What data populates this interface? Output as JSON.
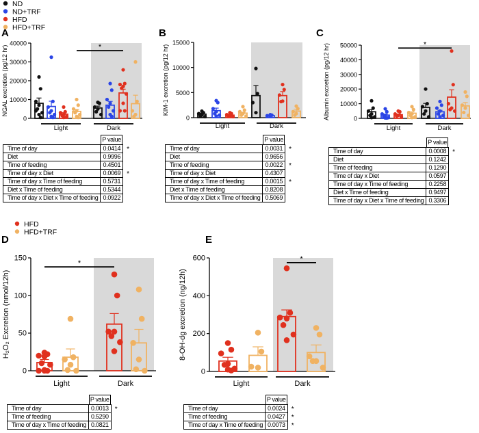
{
  "legend_top": [
    {
      "label": "ND",
      "color": "#111111"
    },
    {
      "label": "ND+TRF",
      "color": "#2b45e6"
    },
    {
      "label": "HFD",
      "color": "#e0301e"
    },
    {
      "label": "HFD+TRF",
      "color": "#f0b262"
    }
  ],
  "legend_bottom": [
    {
      "label": "HFD",
      "color": "#e0301e"
    },
    {
      "label": "HFD+TRF",
      "color": "#f0b262"
    }
  ],
  "shade_color": "#d9d9d9",
  "chart_data": [
    {
      "panel": "A",
      "type": "bar",
      "ylabel": "NGAL excretion (pg/12 hr)",
      "xlabel": "",
      "ylim": [
        0,
        40000
      ],
      "yticks": [
        "0",
        "10000",
        "20000",
        "30000",
        "40000"
      ],
      "groups": [
        "Light",
        "Dark"
      ],
      "shaded_group": "Dark",
      "series": [
        {
          "name": "ND",
          "color": "#111111",
          "values": [
            8000,
            5500
          ],
          "sem": [
            2800,
            1000
          ],
          "points": [
            [
              22000,
              15700,
              9000,
              7000,
              5000,
              3000,
              2000,
              500,
              4000
            ],
            [
              8500,
              8000,
              6000,
              5000,
              3500,
              2000
            ]
          ]
        },
        {
          "name": "ND+TRF",
          "color": "#2b45e6",
          "values": [
            6300,
            7000
          ],
          "sem": [
            2800,
            2000
          ],
          "points": [
            [
              32500,
              9000,
              6000,
              4000,
              3000,
              2000,
              1000,
              500
            ],
            [
              18500,
              15000,
              10000,
              8000,
              6000,
              4000,
              2000,
              1000
            ]
          ]
        },
        {
          "name": "HFD",
          "color": "#e0301e",
          "values": [
            2200,
            13500
          ],
          "sem": [
            800,
            2000
          ],
          "points": [
            [
              6000,
              3500,
              3000,
              2000,
              1500,
              1000,
              500
            ],
            [
              25800,
              18500,
              18000,
              17000,
              16000,
              13000,
              8000,
              4000,
              4000
            ]
          ]
        },
        {
          "name": "HFD+TRF",
          "color": "#f0b262",
          "values": [
            3700,
            7800
          ],
          "sem": [
            1000,
            4500
          ],
          "points": [
            [
              10000,
              7000,
              5000,
              4000,
              3000,
              2000,
              1000,
              500
            ],
            [
              30000,
              9000,
              4000,
              2000,
              1000
            ]
          ]
        }
      ],
      "significance": [
        {
          "from": [
            "Light",
            "HFD+TRF"
          ],
          "to": [
            "Dark",
            "HFD"
          ],
          "y": 36000,
          "label": "*"
        }
      ]
    },
    {
      "panel": "B",
      "type": "bar",
      "ylabel": "KIM-1 excretion (pg/12 hr)",
      "xlabel": "",
      "ylim": [
        0,
        15000
      ],
      "yticks": [
        "0",
        "5000",
        "10000",
        "15000"
      ],
      "groups": [
        "Light",
        "Dark"
      ],
      "shaded_group": "Dark",
      "series": [
        {
          "name": "ND",
          "color": "#111111",
          "values": [
            700,
            4400
          ],
          "sem": [
            200,
            2000
          ],
          "points": [
            [
              1300,
              1000,
              800,
              500,
              300,
              200
            ],
            [
              9800,
              4800,
              3000,
              1000
            ]
          ]
        },
        {
          "name": "ND+TRF",
          "color": "#2b45e6",
          "values": [
            1400,
            400
          ],
          "sem": [
            500,
            80
          ],
          "points": [
            [
              3400,
              3000,
              1800,
              1200,
              800,
              500,
              300
            ],
            [
              600,
              500,
              400,
              300
            ]
          ]
        },
        {
          "name": "HFD",
          "color": "#e0301e",
          "values": [
            500,
            4400
          ],
          "sem": [
            150,
            800
          ],
          "points": [
            [
              1000,
              800,
              600,
              400,
              300,
              200
            ],
            [
              6600,
              5600,
              4500,
              3300,
              3200
            ]
          ]
        },
        {
          "name": "HFD+TRF",
          "color": "#f0b262",
          "values": [
            900,
            1300
          ],
          "sem": [
            200,
            400
          ],
          "points": [
            [
              2200,
              1500,
              1200,
              800,
              500,
              300
            ],
            [
              2300,
              1800,
              1200,
              800,
              500
            ]
          ]
        }
      ],
      "significance": []
    },
    {
      "panel": "C",
      "type": "bar",
      "ylabel": "Albumin excretion (pg/12 hr)",
      "xlabel": "",
      "ylim": [
        0,
        50000
      ],
      "yticks": [
        "0",
        "10000",
        "20000",
        "30000",
        "40000",
        "50000"
      ],
      "groups": [
        "Light",
        "Dark"
      ],
      "shaded_group": "Dark",
      "series": [
        {
          "name": "ND",
          "color": "#111111",
          "values": [
            4500,
            7500
          ],
          "sem": [
            1500,
            2700
          ],
          "points": [
            [
              12000,
              7000,
              5000,
              3000,
              2000,
              1000,
              500
            ],
            [
              20000,
              10000,
              8000,
              5000,
              3000,
              1000
            ]
          ]
        },
        {
          "name": "ND+TRF",
          "color": "#2b45e6",
          "values": [
            2200,
            4500
          ],
          "sem": [
            700,
            1000
          ],
          "points": [
            [
              6500,
              4500,
              3000,
              2000,
              1000,
              500,
              300,
              200
            ],
            [
              11500,
              9000,
              7000,
              5000,
              3000,
              2000,
              1000
            ]
          ]
        },
        {
          "name": "HFD",
          "color": "#e0301e",
          "values": [
            2500,
            14500
          ],
          "sem": [
            500,
            5000
          ],
          "points": [
            [
              5000,
              4500,
              3000,
              2000,
              1500,
              1000
            ],
            [
              46000,
              23000,
              10000,
              7000,
              6000,
              5000
            ]
          ]
        },
        {
          "name": "HFD+TRF",
          "color": "#f0b262",
          "values": [
            3500,
            8500
          ],
          "sem": [
            900,
            2300
          ],
          "points": [
            [
              8000,
              6000,
              4000,
              3000,
              2000,
              1000,
              500
            ],
            [
              18000,
              15000,
              9000,
              7000,
              4000,
              2000
            ]
          ]
        }
      ],
      "significance": [
        {
          "from": [
            "Light",
            "HFD"
          ],
          "to": [
            "Dark",
            "HFD"
          ],
          "y": 48000,
          "label": "*"
        }
      ]
    },
    {
      "panel": "D",
      "type": "bar",
      "ylabel": "H₂O₂ Excretion (nmol/12h)",
      "xlabel": "",
      "ylim": [
        0,
        150
      ],
      "yticks": [
        "0",
        "50",
        "100",
        "150"
      ],
      "groups": [
        "Light",
        "Dark"
      ],
      "shaded_group": "Dark",
      "series": [
        {
          "name": "HFD",
          "color": "#e0301e",
          "values": [
            11,
            62
          ],
          "sem": [
            4,
            14
          ],
          "points": [
            [
              24,
              22,
              20,
              19,
              10,
              8,
              1,
              0,
              0,
              0
            ],
            [
              128,
              100,
              52,
              52,
              46,
              38,
              26
            ]
          ]
        },
        {
          "name": "HFD+TRF",
          "color": "#f0b262",
          "values": [
            18,
            37
          ],
          "sem": [
            11,
            18
          ],
          "points": [
            [
              69,
              18,
              15,
              8,
              1,
              0
            ],
            [
              108,
              69,
              37,
              15,
              2,
              0
            ]
          ]
        }
      ],
      "significance": [
        {
          "from": [
            "Light",
            "HFD"
          ],
          "to": [
            "Dark",
            "HFD"
          ],
          "y": 138,
          "label": "*"
        }
      ]
    },
    {
      "panel": "E",
      "type": "bar",
      "ylabel": "8-OH-dg excretion (ng/12h)",
      "xlabel": "",
      "ylim": [
        0,
        600
      ],
      "yticks": [
        "0",
        "200",
        "400",
        "600"
      ],
      "groups": [
        "Light",
        "Dark"
      ],
      "shaded_group": "Dark",
      "series": [
        {
          "name": "HFD",
          "color": "#e0301e",
          "values": [
            55,
            290
          ],
          "sem": [
            20,
            35
          ],
          "points": [
            [
              150,
              115,
              95,
              40,
              35,
              15,
              10,
              5
            ],
            [
              545,
              310,
              285,
              280,
              245,
              195,
              165
            ]
          ]
        },
        {
          "name": "HFD+TRF",
          "color": "#f0b262",
          "values": [
            85,
            100
          ],
          "sem": [
            45,
            40
          ],
          "points": [
            [
              205,
              105,
              25,
              20
            ],
            [
              230,
              195,
              80,
              55,
              55,
              20
            ]
          ]
        }
      ],
      "significance": [
        {
          "from": [
            "Dark",
            "HFD"
          ],
          "to": [
            "Dark",
            "HFD+TRF"
          ],
          "y": 575,
          "label": "*"
        }
      ]
    }
  ],
  "tables": {
    "A": {
      "header": "P value",
      "rows": [
        {
          "label": "Time of day",
          "p": "0.0414",
          "star": "*"
        },
        {
          "label": "Diet",
          "p": "0.9996",
          "star": ""
        },
        {
          "label": "Time of feeding",
          "p": "0.4501",
          "star": ""
        },
        {
          "label": "Time of day x Diet",
          "p": "0.0069",
          "star": "*"
        },
        {
          "label": "Time of day x Time of feeding",
          "p": "0.5731",
          "star": ""
        },
        {
          "label": "Diet x Time of feeding",
          "p": "0.5344",
          "star": ""
        },
        {
          "label": "Time of day x Diet x Time of feeding",
          "p": "0.0922",
          "star": ""
        }
      ]
    },
    "B": {
      "header": "P value",
      "rows": [
        {
          "label": "Time of day",
          "p": "0.0031",
          "star": "*"
        },
        {
          "label": "Diet",
          "p": "0.9656",
          "star": ""
        },
        {
          "label": "Time of feeding",
          "p": "0.0022",
          "star": "*"
        },
        {
          "label": "Time of day x Diet",
          "p": "0.4307",
          "star": ""
        },
        {
          "label": "Time of day x Time of feeding",
          "p": "0.0015",
          "star": "*"
        },
        {
          "label": "Diet x Time of feeding",
          "p": "0.8208",
          "star": ""
        },
        {
          "label": "Time of day x Diet x Time of feeding",
          "p": "0.5069",
          "star": ""
        }
      ]
    },
    "C": {
      "header": "P value",
      "rows": [
        {
          "label": "Time of day",
          "p": "0.0008",
          "star": "*"
        },
        {
          "label": "Diet",
          "p": "0.1242",
          "star": ""
        },
        {
          "label": "Time of feeding",
          "p": "0.1290",
          "star": ""
        },
        {
          "label": "Time of day x Diet",
          "p": "0.0597",
          "star": ""
        },
        {
          "label": "Time of day x Time of feeding",
          "p": "0.2258",
          "star": ""
        },
        {
          "label": "Diet x Time of feeding",
          "p": "0.9497",
          "star": ""
        },
        {
          "label": "Time of day x Diet x Time of feeding",
          "p": "0.3306",
          "star": ""
        }
      ]
    },
    "D": {
      "header": "P value",
      "rows": [
        {
          "label": "Time of day",
          "p": "0.0013",
          "star": "*"
        },
        {
          "label": "Time of feeding",
          "p": "0.5290",
          "star": ""
        },
        {
          "label": "Time of day x Time of feeding",
          "p": "0.0821",
          "star": ""
        }
      ]
    },
    "E": {
      "header": "P value",
      "rows": [
        {
          "label": "Time of day",
          "p": "0.0024",
          "star": "*"
        },
        {
          "label": "Time of feeding",
          "p": "0.0427",
          "star": "*"
        },
        {
          "label": "Time of day x Time of feeding",
          "p": "0.0073",
          "star": "*"
        }
      ]
    }
  }
}
